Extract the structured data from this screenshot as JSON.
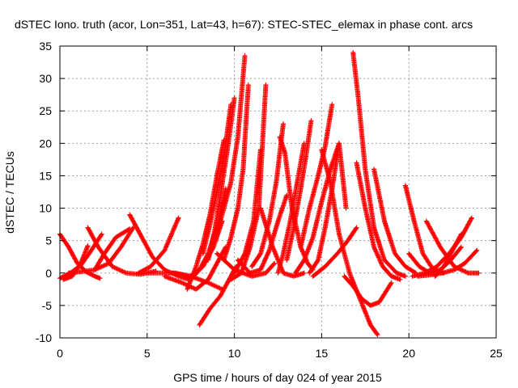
{
  "chart_data": {
    "type": "scatter",
    "title": "dSTEC Iono. truth (acor, Lon=351, Lat=43, h=67): STEC-STEC_elemax in phase cont. arcs",
    "xlabel": "GPS time / hours of day 024 of year 2015",
    "ylabel": "dSTEC  / TECUs",
    "xlim": [
      0,
      25
    ],
    "ylim": [
      -10,
      35
    ],
    "xticks": [
      0,
      5,
      10,
      15,
      20,
      25
    ],
    "yticks": [
      -10,
      -5,
      0,
      5,
      10,
      15,
      20,
      25,
      30,
      35
    ],
    "grid": true,
    "marker": "+",
    "color": "#ff0000",
    "series": [
      {
        "x": [
          0.0,
          0.5,
          1.0,
          1.5,
          2.0,
          2.3
        ],
        "y": [
          6.0,
          4.0,
          1.5,
          0.2,
          -0.5,
          -0.8
        ]
      },
      {
        "x": [
          0.0,
          0.6,
          1.2,
          1.8,
          2.4
        ],
        "y": [
          -0.8,
          0.0,
          1.2,
          3.5,
          6.0
        ]
      },
      {
        "x": [
          0.2,
          0.7,
          1.2,
          1.6
        ],
        "y": [
          -1.0,
          -0.5,
          1.5,
          4.2
        ]
      },
      {
        "x": [
          0.5,
          1.2,
          2.0,
          2.8,
          3.5,
          4.2
        ],
        "y": [
          0.0,
          0.2,
          0.5,
          1.5,
          4.0,
          7.0
        ]
      },
      {
        "x": [
          1.6,
          2.2,
          3.0,
          3.8,
          4.6,
          5.5
        ],
        "y": [
          7.0,
          4.0,
          1.0,
          0.0,
          -0.2,
          0.3
        ]
      },
      {
        "x": [
          2.0,
          2.5,
          3.2,
          4.0
        ],
        "y": [
          0.5,
          2.8,
          5.5,
          6.8
        ]
      },
      {
        "x": [
          4.0,
          4.6,
          5.3,
          6.0,
          6.8,
          7.4
        ],
        "y": [
          9.0,
          6.0,
          2.5,
          0.5,
          -0.5,
          -1.0
        ]
      },
      {
        "x": [
          4.5,
          5.2,
          6.0,
          6.8
        ],
        "y": [
          0.0,
          1.0,
          3.5,
          8.5
        ]
      },
      {
        "x": [
          5.0,
          5.8,
          6.6,
          7.5,
          8.5,
          9.3
        ],
        "y": [
          0.0,
          0.0,
          0.0,
          -0.5,
          -1.5,
          -2.5
        ]
      },
      {
        "x": [
          6.0,
          7.0,
          7.8,
          8.5,
          9.0,
          9.5
        ],
        "y": [
          -0.5,
          -1.5,
          -2.5,
          -1.0,
          1.5,
          4.0
        ]
      },
      {
        "x": [
          6.5,
          7.5,
          8.2,
          8.8,
          9.3
        ],
        "y": [
          0.0,
          -0.5,
          1.0,
          4.0,
          8.0
        ]
      },
      {
        "x": [
          7.5,
          8.0,
          8.5,
          9.0,
          9.5
        ],
        "y": [
          -1.0,
          0.5,
          3.0,
          7.0,
          13.0
        ]
      },
      {
        "x": [
          7.3,
          7.8,
          8.2,
          8.6,
          9.0,
          9.4
        ],
        "y": [
          -2.5,
          1.0,
          4.5,
          9.0,
          15.0,
          20.5
        ]
      },
      {
        "x": [
          8.0,
          8.6,
          9.2,
          9.6,
          10.1
        ],
        "y": [
          -8.0,
          -5.5,
          -3.5,
          -1.5,
          1.0
        ]
      },
      {
        "x": [
          8.5,
          8.9,
          9.2,
          9.6,
          10.0
        ],
        "y": [
          2.0,
          7.0,
          12.0,
          19.0,
          27.0
        ]
      },
      {
        "x": [
          8.2,
          8.6,
          9.0,
          9.4,
          9.8
        ],
        "y": [
          3.0,
          7.5,
          12.5,
          18.0,
          26.0
        ]
      },
      {
        "x": [
          9.0,
          9.4,
          9.8,
          10.2,
          10.6
        ],
        "y": [
          6.0,
          10.0,
          14.0,
          21.0,
          33.5
        ]
      },
      {
        "x": [
          9.4,
          9.8,
          10.2,
          10.5,
          10.8
        ],
        "y": [
          2.0,
          5.5,
          10.0,
          16.0,
          29.0
        ]
      },
      {
        "x": [
          9.0,
          10.0,
          11.0,
          11.8,
          12.3
        ],
        "y": [
          3.0,
          0.5,
          -0.5,
          0.0,
          1.5
        ]
      },
      {
        "x": [
          9.8,
          10.4,
          10.9,
          11.4,
          11.8
        ],
        "y": [
          -1.0,
          0.0,
          4.0,
          10.0,
          29.0
        ]
      },
      {
        "x": [
          10.0,
          10.6,
          11.1,
          11.5
        ],
        "y": [
          0.0,
          3.0,
          8.0,
          19.0
        ]
      },
      {
        "x": [
          10.2,
          10.9,
          11.5,
          12.0,
          12.5,
          13.0
        ],
        "y": [
          2.0,
          0.0,
          0.5,
          3.5,
          8.0,
          12.0
        ]
      },
      {
        "x": [
          11.0,
          11.5,
          12.0,
          12.4,
          12.8
        ],
        "y": [
          1.0,
          3.0,
          8.0,
          14.0,
          23.0
        ]
      },
      {
        "x": [
          11.5,
          12.2,
          12.8,
          13.4,
          14.0
        ],
        "y": [
          10.0,
          4.0,
          0.0,
          -0.5,
          0.0
        ]
      },
      {
        "x": [
          12.5,
          12.8,
          13.2,
          13.6,
          14.0
        ],
        "y": [
          0.0,
          3.0,
          8.0,
          14.0,
          20.0
        ]
      },
      {
        "x": [
          12.6,
          12.9,
          13.3,
          13.8,
          14.2,
          14.5
        ],
        "y": [
          21.0,
          18.5,
          10.0,
          4.0,
          1.5,
          0.5
        ]
      },
      {
        "x": [
          13.0,
          13.4,
          13.8,
          14.1,
          14.4
        ],
        "y": [
          2.0,
          7.0,
          13.0,
          18.0,
          23.5
        ]
      },
      {
        "x": [
          13.5,
          14.0,
          14.5,
          15.0,
          15.5,
          16.0
        ],
        "y": [
          0.0,
          2.0,
          5.5,
          11.0,
          16.0,
          20.0
        ]
      },
      {
        "x": [
          13.8,
          14.3,
          14.8,
          15.2,
          15.6
        ],
        "y": [
          4.0,
          10.0,
          15.0,
          19.5,
          26.0
        ]
      },
      {
        "x": [
          14.3,
          14.8,
          15.2,
          15.6,
          16.0,
          16.4
        ],
        "y": [
          0.0,
          2.0,
          7.0,
          13.0,
          20.0,
          10.0
        ]
      },
      {
        "x": [
          15.0,
          15.5,
          16.0,
          16.6,
          17.2,
          17.8,
          18.2
        ],
        "y": [
          19.0,
          14.0,
          6.0,
          0.0,
          -4.0,
          -8.0,
          -9.5
        ]
      },
      {
        "x": [
          14.5,
          15.2,
          15.9,
          16.5,
          17.0
        ],
        "y": [
          -0.5,
          1.0,
          3.0,
          5.0,
          7.0
        ]
      },
      {
        "x": [
          16.8,
          17.1,
          17.5,
          18.0,
          18.6,
          19.3,
          19.8
        ],
        "y": [
          34.0,
          27.0,
          16.0,
          7.0,
          2.0,
          0.0,
          -0.5
        ]
      },
      {
        "x": [
          16.3,
          16.8,
          17.3,
          17.8,
          18.3,
          19.0
        ],
        "y": [
          -0.5,
          -2.0,
          -4.0,
          -5.0,
          -4.5,
          -1.5
        ]
      },
      {
        "x": [
          17.0,
          17.5,
          18.0,
          18.5,
          19.0,
          19.5
        ],
        "y": [
          17.0,
          10.0,
          4.0,
          1.0,
          -0.5,
          -1.0
        ]
      },
      {
        "x": [
          18.0,
          18.6,
          19.2,
          19.8,
          20.4
        ],
        "y": [
          16.0,
          8.0,
          3.0,
          1.0,
          0.0
        ]
      },
      {
        "x": [
          19.8,
          20.3,
          20.8,
          21.4,
          22.0
        ],
        "y": [
          13.5,
          8.0,
          3.0,
          0.5,
          0.0
        ]
      },
      {
        "x": [
          20.0,
          20.6,
          21.2,
          21.8,
          22.4,
          23.0
        ],
        "y": [
          3.0,
          1.0,
          0.0,
          0.5,
          2.0,
          4.0
        ]
      },
      {
        "x": [
          20.2,
          20.9,
          21.6,
          22.3,
          23.0,
          23.6
        ],
        "y": [
          -0.5,
          0.0,
          1.0,
          3.0,
          5.5,
          8.5
        ]
      },
      {
        "x": [
          20.5,
          21.2,
          21.9,
          22.6,
          23.2,
          23.9
        ],
        "y": [
          -0.5,
          -0.3,
          0.0,
          0.5,
          1.5,
          3.5
        ]
      },
      {
        "x": [
          21.0,
          21.8,
          22.6,
          23.4,
          24.0
        ],
        "y": [
          8.0,
          4.0,
          1.0,
          0.0,
          0.0
        ]
      },
      {
        "x": [
          21.5,
          22.0,
          22.5,
          23.0
        ],
        "y": [
          -0.5,
          1.0,
          3.5,
          6.0
        ]
      }
    ]
  }
}
